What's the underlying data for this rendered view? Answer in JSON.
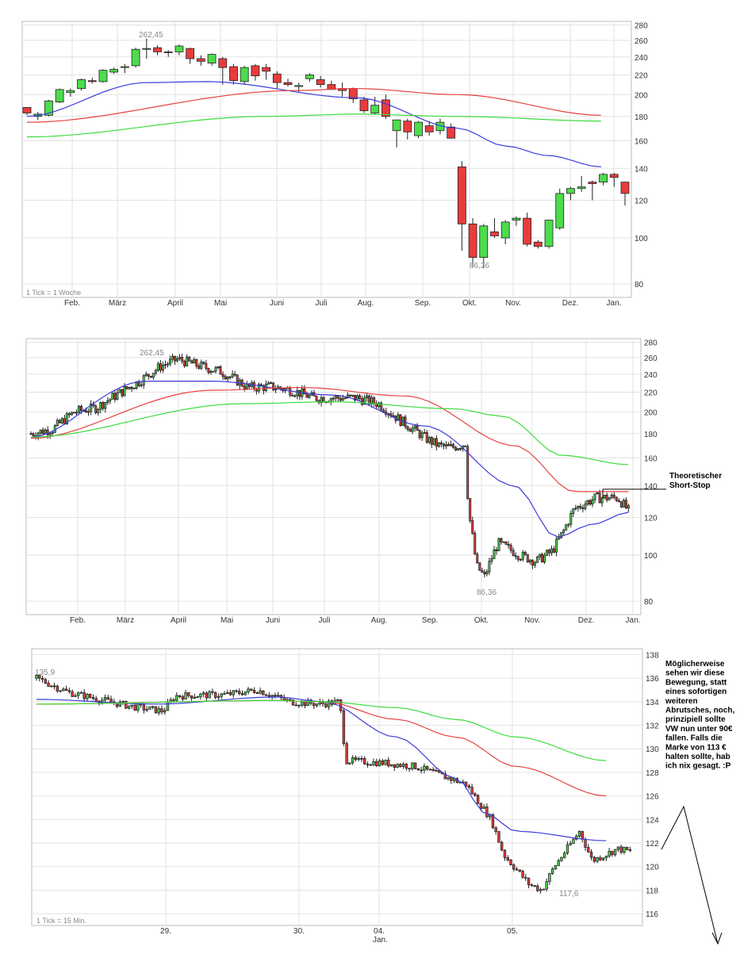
{
  "colors": {
    "up": "#4cdc4c",
    "down": "#e83c3c",
    "sma_fast": "#3b3bdc",
    "sma_mid": "#e84040",
    "sma_slow": "#3cdc3c",
    "grid": "#e2e2e2",
    "frame": "#bbbbbb"
  },
  "charts": [
    {
      "id": "weekly",
      "footnote": "1 Tick = 1 Woche",
      "yticks": [
        80,
        100,
        120,
        140,
        160,
        180,
        200,
        220,
        240,
        260,
        280
      ],
      "xticks": [
        "Feb.",
        "März",
        "April",
        "Mai",
        "Juni",
        "Juli",
        "Aug.",
        "Sep.",
        "Okt.",
        "Nov.",
        "Dez.",
        "Jan."
      ],
      "high_label": "262,45",
      "low_label": "86,36"
    },
    {
      "id": "daily",
      "yticks": [
        80,
        100,
        120,
        140,
        160,
        180,
        200,
        220,
        240,
        260,
        280
      ],
      "xticks": [
        "Feb.",
        "März",
        "April",
        "Mai",
        "Juni",
        "Juli",
        "Aug.",
        "Sep.",
        "Okt.",
        "Nov.",
        "Dez.",
        "Jan."
      ],
      "high_label": "262,45",
      "low_label": "86,36",
      "annotation_lines": [
        "Theoretischer",
        "Short-Stop"
      ]
    },
    {
      "id": "intraday",
      "footnote": "1 Tick = 15 Min.",
      "yticks": [
        116,
        118,
        120,
        122,
        124,
        126,
        128,
        130,
        132,
        134,
        136,
        138
      ],
      "xticks": [
        "29.",
        "30.",
        "04.",
        "05."
      ],
      "xtick_sub": "Jan.",
      "high_label": "135,9",
      "low_label": "117,6",
      "comment_lines": [
        "Möglicherweise",
        "sehen wir diese",
        "Bewegung, statt",
        "eines sofortigen",
        "weiteren",
        "Abrutsches, noch,",
        "prinzipiell sollte",
        "VW nun unter 90€",
        "fallen. Falls die",
        "Marke von 113 €",
        "halten sollte, hab",
        "ich nix gesagt. :P"
      ]
    }
  ],
  "chart_data": [
    {
      "type": "candlestick",
      "interval": "1 week",
      "ylim": [
        75,
        285
      ],
      "log_scale": true,
      "x_months": [
        "Feb.",
        "März",
        "April",
        "Mai",
        "Juni",
        "Juli",
        "Aug.",
        "Sep.",
        "Okt.",
        "Nov.",
        "Dez.",
        "Jan."
      ],
      "high": 262.45,
      "low": 86.36,
      "candles_ohlc": [
        [
          188,
          188,
          181,
          183
        ],
        [
          180,
          184,
          177,
          182
        ],
        [
          181,
          195,
          180,
          194
        ],
        [
          193,
          206,
          192,
          205
        ],
        [
          202,
          206,
          198,
          204
        ],
        [
          206,
          216,
          204,
          215
        ],
        [
          214,
          217,
          211,
          213
        ],
        [
          213,
          226,
          212,
          225
        ],
        [
          223,
          228,
          221,
          226
        ],
        [
          228,
          232,
          222,
          229
        ],
        [
          230,
          251,
          228,
          249
        ],
        [
          249,
          262.45,
          238,
          250
        ],
        [
          251,
          254,
          242,
          246
        ],
        [
          246,
          248,
          240,
          245
        ],
        [
          246,
          255,
          242,
          253
        ],
        [
          250,
          251,
          232,
          238
        ],
        [
          238,
          242,
          230,
          235
        ],
        [
          233,
          244,
          230,
          243
        ],
        [
          238,
          240,
          210,
          228
        ],
        [
          229,
          232,
          210,
          214
        ],
        [
          213,
          230,
          210,
          228
        ],
        [
          230,
          232,
          214,
          219
        ],
        [
          228,
          232,
          215,
          224
        ],
        [
          221,
          224,
          206,
          212
        ],
        [
          212,
          216,
          208,
          210
        ],
        [
          208,
          212,
          202,
          209
        ],
        [
          216,
          222,
          213,
          220
        ],
        [
          215,
          219,
          207,
          210
        ],
        [
          210,
          214,
          205,
          205
        ],
        [
          206,
          212,
          198,
          204
        ],
        [
          206,
          207,
          192,
          196
        ],
        [
          195,
          198,
          183,
          185
        ],
        [
          183,
          198,
          182,
          190
        ],
        [
          195,
          200,
          178,
          180
        ],
        [
          168,
          177,
          155,
          177
        ],
        [
          176,
          178,
          161,
          167
        ],
        [
          164,
          176,
          162,
          175
        ],
        [
          172,
          176,
          164,
          167
        ],
        [
          168,
          178,
          165,
          175
        ],
        [
          171,
          174,
          162,
          162
        ],
        [
          141,
          145,
          94,
          107
        ],
        [
          107,
          110,
          87,
          91
        ],
        [
          91,
          107,
          86.36,
          106
        ],
        [
          103,
          110,
          100,
          101
        ],
        [
          100,
          109,
          97,
          108
        ],
        [
          109,
          111,
          106,
          110
        ],
        [
          110,
          113,
          96,
          97
        ],
        [
          98,
          99,
          95,
          96
        ],
        [
          96,
          109,
          95,
          109
        ],
        [
          105,
          127,
          104,
          124
        ],
        [
          124,
          128,
          120,
          127
        ],
        [
          127,
          135,
          125,
          128
        ],
        [
          131,
          132,
          120,
          130
        ],
        [
          131,
          137,
          129,
          136
        ],
        [
          136,
          137,
          128,
          134
        ],
        [
          131,
          131,
          117,
          124
        ]
      ],
      "series": [
        {
          "name": "fast",
          "x": [
            0,
            0.2,
            0.3,
            0.55,
            0.72,
            0.8,
            0.87,
            0.96
          ],
          "values": [
            180,
            212,
            213,
            197,
            170,
            156,
            149,
            141
          ]
        },
        {
          "name": "mid",
          "x": [
            0,
            0.45,
            0.55,
            0.72,
            0.96
          ],
          "values": [
            175,
            204,
            206,
            200,
            181
          ]
        },
        {
          "name": "slow",
          "x": [
            0,
            0.4,
            0.55,
            0.72,
            0.96
          ],
          "values": [
            163,
            180,
            182,
            180,
            176
          ]
        }
      ]
    },
    {
      "type": "candlestick",
      "interval": "1 day",
      "ylim": [
        75,
        285
      ],
      "log_scale": true,
      "x_months": [
        "Feb.",
        "März",
        "April",
        "Mai",
        "Juni",
        "Juli",
        "Aug.",
        "Sep.",
        "Okt.",
        "Nov.",
        "Dez.",
        "Jan."
      ],
      "high": 262.45,
      "low": 86.36,
      "path_anchors": [
        [
          0,
          180
        ],
        [
          0.04,
          184
        ],
        [
          0.08,
          200
        ],
        [
          0.12,
          204
        ],
        [
          0.16,
          218
        ],
        [
          0.2,
          232
        ],
        [
          0.24,
          250
        ],
        [
          0.27,
          258
        ],
        [
          0.31,
          250
        ],
        [
          0.35,
          243
        ],
        [
          0.4,
          225
        ],
        [
          0.44,
          226
        ],
        [
          0.48,
          222
        ],
        [
          0.52,
          214
        ],
        [
          0.56,
          214
        ],
        [
          0.6,
          214
        ],
        [
          0.64,
          208
        ],
        [
          0.68,
          192
        ],
        [
          0.7,
          185
        ],
        [
          0.73,
          175
        ],
        [
          0.75,
          170
        ],
        [
          0.77,
          168
        ],
        [
          0.79,
          170
        ],
        [
          0.8,
          172
        ],
        [
          0.805,
          125
        ],
        [
          0.82,
          95
        ],
        [
          0.835,
          90
        ],
        [
          0.85,
          100
        ],
        [
          0.86,
          106
        ],
        [
          0.9,
          100
        ],
        [
          0.93,
          97
        ],
        [
          0.96,
          102
        ],
        [
          0.98,
          112
        ],
        [
          1.0,
          125
        ],
        [
          1.04,
          132
        ],
        [
          1.08,
          132
        ],
        [
          1.1,
          124
        ]
      ],
      "series": [
        {
          "name": "fast",
          "x": [
            0,
            0.19,
            0.3,
            0.5,
            0.65,
            0.8,
            0.87,
            0.93,
            0.99
          ],
          "values": [
            177,
            232,
            232,
            217,
            187,
            140,
            109,
            116,
            123
          ]
        },
        {
          "name": "mid",
          "x": [
            0,
            0.3,
            0.45,
            0.62,
            0.8,
            0.9,
            0.99
          ],
          "values": [
            176,
            222,
            225,
            216,
            170,
            136,
            136
          ]
        },
        {
          "name": "slow",
          "x": [
            0,
            0.35,
            0.5,
            0.7,
            0.78,
            0.88,
            0.99
          ],
          "values": [
            177,
            208,
            210,
            203,
            196,
            162,
            155
          ]
        }
      ],
      "short_stop": 136
    },
    {
      "type": "candlestick",
      "interval": "15 min",
      "ylim": [
        115,
        138.5
      ],
      "log_scale": false,
      "x_days": [
        "29.",
        "30.",
        "04.",
        "05."
      ],
      "high": 135.9,
      "low": 117.6,
      "path_anchors": [
        [
          0,
          136
        ],
        [
          0.05,
          134.8
        ],
        [
          0.1,
          134.2
        ],
        [
          0.15,
          133.6
        ],
        [
          0.2,
          133.2
        ],
        [
          0.22,
          134.5
        ],
        [
          0.3,
          134.6
        ],
        [
          0.35,
          135
        ],
        [
          0.4,
          134
        ],
        [
          0.45,
          133.8
        ],
        [
          0.48,
          134
        ],
        [
          0.49,
          129
        ],
        [
          0.55,
          128.8
        ],
        [
          0.6,
          128.5
        ],
        [
          0.68,
          127
        ],
        [
          0.72,
          124
        ],
        [
          0.74,
          121
        ],
        [
          0.78,
          118.5
        ],
        [
          0.8,
          118
        ],
        [
          0.82,
          120
        ],
        [
          0.86,
          123
        ],
        [
          0.88,
          120.5
        ],
        [
          0.92,
          121.5
        ],
        [
          0.94,
          121.3
        ]
      ],
      "series": [
        {
          "name": "fast",
          "x": [
            0,
            0.2,
            0.4,
            0.48,
            0.6,
            0.7,
            0.75,
            0.8,
            0.95
          ],
          "values": [
            134.2,
            133.8,
            134.4,
            134,
            131,
            127.5,
            124.5,
            123,
            122.2
          ]
        },
        {
          "name": "mid",
          "x": [
            0,
            0.4,
            0.48,
            0.6,
            0.7,
            0.8,
            0.95
          ],
          "values": [
            133.8,
            134.1,
            134,
            132.5,
            131,
            128.5,
            126
          ]
        },
        {
          "name": "slow",
          "x": [
            0,
            0.4,
            0.48,
            0.6,
            0.7,
            0.8,
            0.95
          ],
          "values": [
            133.8,
            134.1,
            134,
            133.5,
            132.5,
            131,
            129
          ]
        }
      ]
    }
  ]
}
